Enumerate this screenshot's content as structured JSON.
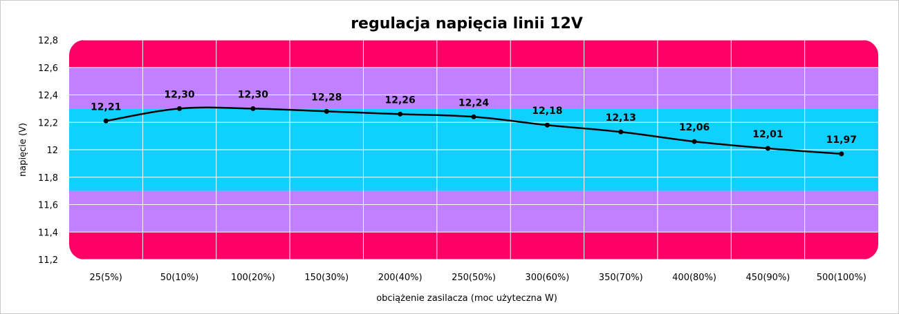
{
  "chart_data": {
    "type": "line",
    "title": "regulacja napięcia linii 12V",
    "xlabel": "obciążenie zasilacza (moc użyteczna W)",
    "ylabel": "napięcie (V)",
    "categories": [
      "25(5%)",
      "50(10%)",
      "100(20%)",
      "150(30%)",
      "200(40%)",
      "250(50%)",
      "300(60%)",
      "350(70%)",
      "400(80%)",
      "450(90%)",
      "500(100%)"
    ],
    "values": [
      12.21,
      12.3,
      12.3,
      12.28,
      12.26,
      12.24,
      12.18,
      12.13,
      12.06,
      12.01,
      11.97
    ],
    "value_labels": [
      "12,21",
      "12,30",
      "12,30",
      "12,28",
      "12,26",
      "12,24",
      "12,18",
      "12,13",
      "12,06",
      "12,01",
      "11,97"
    ],
    "ylim": [
      11.2,
      12.8
    ],
    "yticks": [
      11.2,
      11.4,
      11.6,
      11.8,
      12.0,
      12.2,
      12.4,
      12.6,
      12.8
    ],
    "ytick_labels": [
      "11,2",
      "11,4",
      "11,6",
      "11,8",
      "12",
      "12,2",
      "12,4",
      "12,6",
      "12,8"
    ],
    "grid": true,
    "bands": [
      {
        "from": 11.2,
        "to": 11.4,
        "color": "#ff0066"
      },
      {
        "from": 11.4,
        "to": 11.7,
        "color": "#c080ff"
      },
      {
        "from": 11.7,
        "to": 12.3,
        "color": "#10d0ff"
      },
      {
        "from": 12.3,
        "to": 12.6,
        "color": "#c080ff"
      },
      {
        "from": 12.6,
        "to": 12.8,
        "color": "#ff0066"
      }
    ],
    "line_color": "#000000",
    "grid_color": "#ffffff"
  }
}
